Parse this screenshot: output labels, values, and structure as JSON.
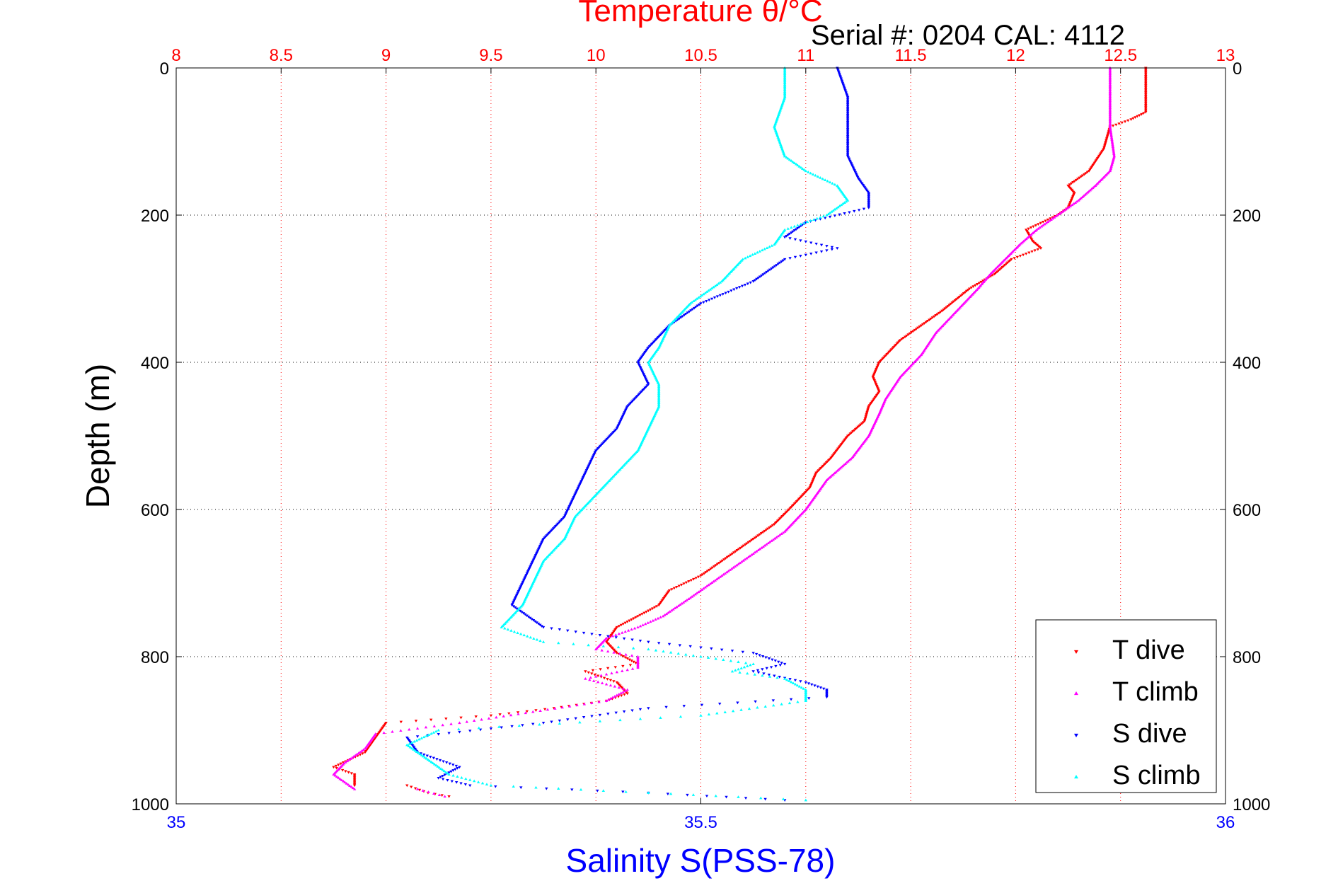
{
  "chart_data": {
    "type": "scatter",
    "title": "Temperature θ/°C",
    "subtitle": "Serial #: 0204  CAL: 4112",
    "ylabel": "Depth (m)",
    "xlabel": "Salinity S(PSS-78)",
    "top_axis": {
      "label": "Temperature θ/°C",
      "range": [
        8,
        13
      ],
      "ticks": [
        "8",
        "8.5",
        "9",
        "9.5",
        "10",
        "10.5",
        "11",
        "11.5",
        "12",
        "12.5",
        "13"
      ],
      "color": "#ff0000"
    },
    "bottom_axis": {
      "label": "Salinity S(PSS-78)",
      "range": [
        35,
        36
      ],
      "ticks": [
        "35",
        "35.5",
        "36"
      ],
      "color": "#0000ff"
    },
    "y_axis": {
      "label": "Depth (m)",
      "range": [
        0,
        1000
      ],
      "reversed": true,
      "ticks": [
        "0",
        "200",
        "400",
        "600",
        "800",
        "1000"
      ]
    },
    "grid": true,
    "legend_position": "bottom-right",
    "series": [
      {
        "name": "T dive",
        "axis": "top",
        "color": "#ff0000",
        "marker": "triangle-down",
        "depth": [
          0,
          60,
          70,
          80,
          110,
          140,
          160,
          170,
          190,
          200,
          220,
          235,
          245,
          260,
          280,
          300,
          330,
          350,
          370,
          400,
          420,
          440,
          460,
          480,
          500,
          530,
          550,
          570,
          600,
          620,
          640,
          660,
          690,
          710,
          730,
          745,
          760,
          780,
          795,
          810,
          820,
          835,
          850,
          860,
          870,
          880,
          890,
          910,
          930,
          950,
          960,
          975
        ],
        "values": [
          12.62,
          12.62,
          12.55,
          12.45,
          12.42,
          12.35,
          12.25,
          12.28,
          12.25,
          12.2,
          12.05,
          12.08,
          12.12,
          11.98,
          11.9,
          11.78,
          11.65,
          11.55,
          11.45,
          11.35,
          11.32,
          11.35,
          11.3,
          11.28,
          11.2,
          11.12,
          11.05,
          11.02,
          10.92,
          10.85,
          10.75,
          10.65,
          10.5,
          10.35,
          10.3,
          10.2,
          10.1,
          10.05,
          10.1,
          10.2,
          9.95,
          10.1,
          10.15,
          10.05,
          9.8,
          9.5,
          9.0,
          8.95,
          8.9,
          8.75,
          8.85,
          8.85
        ],
        "tail_depth": [
          975,
          985,
          990
        ],
        "tail_values": [
          9.1,
          9.2,
          9.3
        ]
      },
      {
        "name": "T climb",
        "axis": "top",
        "color": "#ff00ff",
        "marker": "triangle-up",
        "depth": [
          0,
          40,
          80,
          120,
          140,
          160,
          180,
          200,
          220,
          240,
          260,
          280,
          300,
          330,
          360,
          390,
          420,
          450,
          470,
          500,
          530,
          560,
          600,
          630,
          660,
          690,
          720,
          745,
          760,
          775,
          790,
          800,
          815,
          830,
          845,
          860,
          875,
          890,
          905,
          925,
          945,
          960,
          980
        ],
        "values": [
          12.45,
          12.45,
          12.45,
          12.47,
          12.45,
          12.38,
          12.3,
          12.2,
          12.1,
          12.02,
          11.95,
          11.88,
          11.82,
          11.72,
          11.62,
          11.55,
          11.45,
          11.38,
          11.35,
          11.3,
          11.22,
          11.1,
          11.0,
          10.9,
          10.75,
          10.6,
          10.45,
          10.32,
          10.2,
          10.05,
          10.0,
          10.2,
          10.2,
          9.95,
          10.15,
          10.05,
          9.7,
          9.35,
          8.95,
          8.9,
          8.8,
          8.75,
          8.85
        ],
        "tail_depth": [
          980,
          990
        ],
        "tail_values": [
          9.15,
          9.28
        ]
      },
      {
        "name": "S dive",
        "axis": "bottom",
        "color": "#0000ff",
        "marker": "triangle-down",
        "depth": [
          0,
          40,
          80,
          120,
          150,
          170,
          190,
          210,
          230,
          245,
          260,
          290,
          320,
          350,
          380,
          400,
          430,
          460,
          490,
          520,
          550,
          580,
          610,
          640,
          670,
          700,
          730,
          760,
          780,
          795,
          810,
          820,
          835,
          845,
          855,
          870,
          890,
          910,
          930,
          950,
          965,
          975,
          985,
          995
        ],
        "values": [
          35.63,
          35.64,
          35.64,
          35.64,
          35.65,
          35.66,
          35.66,
          35.6,
          35.58,
          35.63,
          35.58,
          35.55,
          35.5,
          35.47,
          35.45,
          35.44,
          35.45,
          35.43,
          35.42,
          35.4,
          35.39,
          35.38,
          35.37,
          35.35,
          35.34,
          35.33,
          35.32,
          35.35,
          35.45,
          35.55,
          35.58,
          35.55,
          35.6,
          35.62,
          35.62,
          35.45,
          35.35,
          35.22,
          35.23,
          35.27,
          35.25,
          35.28,
          35.45,
          35.58
        ]
      },
      {
        "name": "S climb",
        "axis": "bottom",
        "color": "#00ffff",
        "marker": "triangle-up",
        "depth": [
          0,
          40,
          80,
          120,
          140,
          160,
          180,
          200,
          220,
          240,
          260,
          290,
          320,
          350,
          380,
          400,
          430,
          460,
          490,
          520,
          550,
          580,
          610,
          640,
          670,
          700,
          730,
          760,
          780,
          790,
          800,
          810,
          820,
          830,
          845,
          860,
          880,
          900,
          920,
          940,
          960,
          975,
          985,
          995
        ],
        "values": [
          35.58,
          35.58,
          35.57,
          35.58,
          35.6,
          35.63,
          35.64,
          35.62,
          35.58,
          35.57,
          35.54,
          35.52,
          35.49,
          35.47,
          35.46,
          35.45,
          35.46,
          35.46,
          35.45,
          35.44,
          35.42,
          35.4,
          35.38,
          35.37,
          35.35,
          35.34,
          35.33,
          35.31,
          35.35,
          35.45,
          35.5,
          35.55,
          35.53,
          35.58,
          35.6,
          35.6,
          35.5,
          35.25,
          35.22,
          35.24,
          35.26,
          35.3,
          35.45,
          35.6
        ]
      }
    ]
  },
  "legend": {
    "items": [
      {
        "label": "T dive",
        "color": "#ff0000",
        "marker": "triangle-down"
      },
      {
        "label": "T climb",
        "color": "#ff00ff",
        "marker": "triangle-up"
      },
      {
        "label": "S dive",
        "color": "#0000ff",
        "marker": "triangle-down"
      },
      {
        "label": "S climb",
        "color": "#00ffff",
        "marker": "triangle-up"
      }
    ]
  }
}
